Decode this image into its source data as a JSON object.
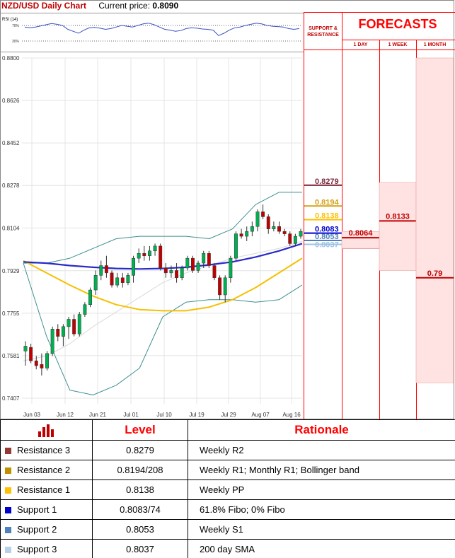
{
  "header": {
    "title": "NZD/USD Daily Chart",
    "current_price_label": "Current price:",
    "current_price_value": "0.8090"
  },
  "forecast_panel": {
    "title": "FORECASTS",
    "sr_label_line1": "SUPPORT &",
    "sr_label_line2": "RESISTANCE",
    "col_1day": "1 DAY",
    "col_1week": "1 WEEK",
    "col_1month": "1 MONTH",
    "forecast_1day": "0.8064",
    "forecast_1week": "0.8133",
    "forecast_1month": "0.79",
    "level_labels": [
      "0.8279",
      "0.8194",
      "0.8138",
      "0.8083",
      "0.8053",
      "0.8037"
    ]
  },
  "chart_data": {
    "type": "candlestick",
    "title": "NZD/USD Daily Chart",
    "ylim": [
      0.7407,
      0.88
    ],
    "yticks": [
      "0.8800",
      "0.8626",
      "0.8452",
      "0.8278",
      "0.8104",
      "0.7929",
      "0.7755",
      "0.7581",
      "0.7407"
    ],
    "xticks": [
      "Jun 03",
      "Jun 12",
      "Jun 21",
      "Jul 01",
      "Jul 10",
      "Jul 19",
      "Jul 29",
      "Aug 07",
      "Aug 16"
    ],
    "rsi": {
      "label": "RSI (14)",
      "upper": "70%",
      "lower": "30%"
    },
    "candles": [
      {
        "o": 0.76,
        "h": 0.764,
        "l": 0.754,
        "c": 0.762
      },
      {
        "o": 0.7615,
        "h": 0.763,
        "l": 0.755,
        "c": 0.756
      },
      {
        "o": 0.756,
        "h": 0.758,
        "l": 0.7525,
        "c": 0.754
      },
      {
        "o": 0.7545,
        "h": 0.759,
        "l": 0.75,
        "c": 0.753
      },
      {
        "o": 0.753,
        "h": 0.76,
        "l": 0.752,
        "c": 0.759
      },
      {
        "o": 0.759,
        "h": 0.77,
        "l": 0.758,
        "c": 0.769
      },
      {
        "o": 0.769,
        "h": 0.771,
        "l": 0.764,
        "c": 0.766
      },
      {
        "o": 0.766,
        "h": 0.771,
        "l": 0.762,
        "c": 0.77
      },
      {
        "o": 0.77,
        "h": 0.774,
        "l": 0.765,
        "c": 0.773
      },
      {
        "o": 0.773,
        "h": 0.775,
        "l": 0.766,
        "c": 0.767
      },
      {
        "o": 0.767,
        "h": 0.776,
        "l": 0.766,
        "c": 0.775
      },
      {
        "o": 0.775,
        "h": 0.78,
        "l": 0.774,
        "c": 0.779
      },
      {
        "o": 0.779,
        "h": 0.786,
        "l": 0.778,
        "c": 0.785
      },
      {
        "o": 0.785,
        "h": 0.793,
        "l": 0.783,
        "c": 0.791
      },
      {
        "o": 0.791,
        "h": 0.797,
        "l": 0.789,
        "c": 0.795
      },
      {
        "o": 0.795,
        "h": 0.799,
        "l": 0.79,
        "c": 0.792
      },
      {
        "o": 0.792,
        "h": 0.793,
        "l": 0.786,
        "c": 0.787
      },
      {
        "o": 0.787,
        "h": 0.792,
        "l": 0.786,
        "c": 0.79
      },
      {
        "o": 0.79,
        "h": 0.792,
        "l": 0.786,
        "c": 0.788
      },
      {
        "o": 0.788,
        "h": 0.792,
        "l": 0.787,
        "c": 0.791
      },
      {
        "o": 0.791,
        "h": 0.799,
        "l": 0.788,
        "c": 0.798
      },
      {
        "o": 0.798,
        "h": 0.802,
        "l": 0.796,
        "c": 0.8
      },
      {
        "o": 0.8,
        "h": 0.803,
        "l": 0.797,
        "c": 0.799
      },
      {
        "o": 0.799,
        "h": 0.803,
        "l": 0.797,
        "c": 0.801
      },
      {
        "o": 0.801,
        "h": 0.804,
        "l": 0.799,
        "c": 0.803
      },
      {
        "o": 0.803,
        "h": 0.804,
        "l": 0.793,
        "c": 0.794
      },
      {
        "o": 0.794,
        "h": 0.796,
        "l": 0.79,
        "c": 0.792
      },
      {
        "o": 0.792,
        "h": 0.795,
        "l": 0.79,
        "c": 0.793
      },
      {
        "o": 0.793,
        "h": 0.796,
        "l": 0.788,
        "c": 0.79
      },
      {
        "o": 0.79,
        "h": 0.795,
        "l": 0.789,
        "c": 0.794
      },
      {
        "o": 0.794,
        "h": 0.799,
        "l": 0.793,
        "c": 0.798
      },
      {
        "o": 0.798,
        "h": 0.799,
        "l": 0.792,
        "c": 0.793
      },
      {
        "o": 0.793,
        "h": 0.797,
        "l": 0.792,
        "c": 0.796
      },
      {
        "o": 0.796,
        "h": 0.801,
        "l": 0.794,
        "c": 0.8
      },
      {
        "o": 0.8,
        "h": 0.801,
        "l": 0.794,
        "c": 0.795
      },
      {
        "o": 0.795,
        "h": 0.796,
        "l": 0.789,
        "c": 0.79
      },
      {
        "o": 0.79,
        "h": 0.791,
        "l": 0.781,
        "c": 0.783
      },
      {
        "o": 0.783,
        "h": 0.791,
        "l": 0.78,
        "c": 0.79
      },
      {
        "o": 0.79,
        "h": 0.799,
        "l": 0.788,
        "c": 0.798
      },
      {
        "o": 0.798,
        "h": 0.809,
        "l": 0.797,
        "c": 0.808
      },
      {
        "o": 0.808,
        "h": 0.81,
        "l": 0.806,
        "c": 0.807
      },
      {
        "o": 0.807,
        "h": 0.811,
        "l": 0.805,
        "c": 0.809
      },
      {
        "o": 0.809,
        "h": 0.813,
        "l": 0.807,
        "c": 0.811
      },
      {
        "o": 0.811,
        "h": 0.818,
        "l": 0.809,
        "c": 0.817
      },
      {
        "o": 0.817,
        "h": 0.82,
        "l": 0.814,
        "c": 0.815
      },
      {
        "o": 0.815,
        "h": 0.816,
        "l": 0.808,
        "c": 0.81
      },
      {
        "o": 0.81,
        "h": 0.813,
        "l": 0.809,
        "c": 0.811
      },
      {
        "o": 0.811,
        "h": 0.813,
        "l": 0.808,
        "c": 0.809
      },
      {
        "o": 0.809,
        "h": 0.81,
        "l": 0.807,
        "c": 0.808
      },
      {
        "o": 0.808,
        "h": 0.809,
        "l": 0.803,
        "c": 0.804
      },
      {
        "o": 0.804,
        "h": 0.808,
        "l": 0.803,
        "c": 0.807
      },
      {
        "o": 0.807,
        "h": 0.81,
        "l": 0.806,
        "c": 0.809
      }
    ],
    "sma_blue": [
      0.7965,
      0.796,
      0.795,
      0.7943,
      0.7938,
      0.7936,
      0.7938,
      0.7943,
      0.7953,
      0.7965,
      0.7985,
      0.801,
      0.804
    ],
    "sma_yellow": [
      0.797,
      0.792,
      0.787,
      0.7825,
      0.779,
      0.777,
      0.7765,
      0.7765,
      0.778,
      0.781,
      0.786,
      0.792,
      0.798
    ],
    "bb_upper": [
      0.796,
      0.796,
      0.798,
      0.802,
      0.806,
      0.807,
      0.807,
      0.807,
      0.806,
      0.81,
      0.82,
      0.825,
      0.825
    ],
    "bb_lower": [
      0.796,
      0.766,
      0.744,
      0.742,
      0.746,
      0.753,
      0.774,
      0.78,
      0.781,
      0.781,
      0.78,
      0.781,
      0.787
    ],
    "sma_grey": [
      0.756,
      0.758,
      0.763,
      0.77,
      0.776,
      0.782,
      0.788,
      0.792,
      0.795,
      0.798,
      0.8,
      0.802,
      0.805
    ],
    "rsi_values": [
      0.66,
      0.64,
      0.66,
      0.69,
      0.72,
      0.75,
      0.73,
      0.7,
      0.6,
      0.55,
      0.5,
      0.58,
      0.64,
      0.65,
      0.63,
      0.6,
      0.62,
      0.66,
      0.7,
      0.68,
      0.66,
      0.7,
      0.74,
      0.76,
      0.72,
      0.66,
      0.6,
      0.58,
      0.55,
      0.57,
      0.62,
      0.64,
      0.63,
      0.61,
      0.6,
      0.58,
      0.44,
      0.5,
      0.58,
      0.64,
      0.66,
      0.7,
      0.73,
      0.76,
      0.74,
      0.7,
      0.68,
      0.67,
      0.66,
      0.62,
      0.6,
      0.62
    ],
    "levels": [
      {
        "value": 0.8279,
        "label": "0.8279",
        "color": "#7f2a3c"
      },
      {
        "value": 0.8194,
        "label": "0.8194",
        "color": "#d4a017"
      },
      {
        "value": 0.8138,
        "label": "0.8138",
        "color": "#ffc000"
      },
      {
        "value": 0.8083,
        "label": "0.8083",
        "color": "#0000cc"
      },
      {
        "value": 0.8053,
        "label": "0.8053",
        "color": "#4f81bd"
      },
      {
        "value": 0.8037,
        "label": "0.8037",
        "color": "#9dc3e6"
      }
    ],
    "forecasts": {
      "day": {
        "value": 0.8064,
        "range": [
          0.802,
          0.809
        ]
      },
      "week": {
        "value": 0.8133,
        "range": [
          0.793,
          0.829
        ]
      },
      "month": {
        "value": 0.79,
        "range": [
          0.747,
          0.88
        ]
      }
    }
  },
  "table": {
    "header_level": "Level",
    "header_rationale": "Rationale",
    "rows": [
      {
        "name": "Resistance 3",
        "level": "0.8279",
        "rationale": "Weekly R2",
        "color": "#953735"
      },
      {
        "name": "Resistance 2",
        "level": "0.8194/208",
        "rationale": "Weekly R1; Monthly R1; Bollinger band",
        "color": "#c09000"
      },
      {
        "name": "Resistance 1",
        "level": "0.8138",
        "rationale": "Weekly PP",
        "color": "#ffc000"
      },
      {
        "name": "Support 1",
        "level": "0.8083/74",
        "rationale": "61.8% Fibo; 0% Fibo",
        "color": "#0000cc"
      },
      {
        "name": "Support 2",
        "level": "0.8053",
        "rationale": "Weekly S1",
        "color": "#4f81bd"
      },
      {
        "name": "Support 3",
        "level": "0.8037",
        "rationale": "200 day SMA",
        "color": "#b8d0ea"
      }
    ]
  }
}
